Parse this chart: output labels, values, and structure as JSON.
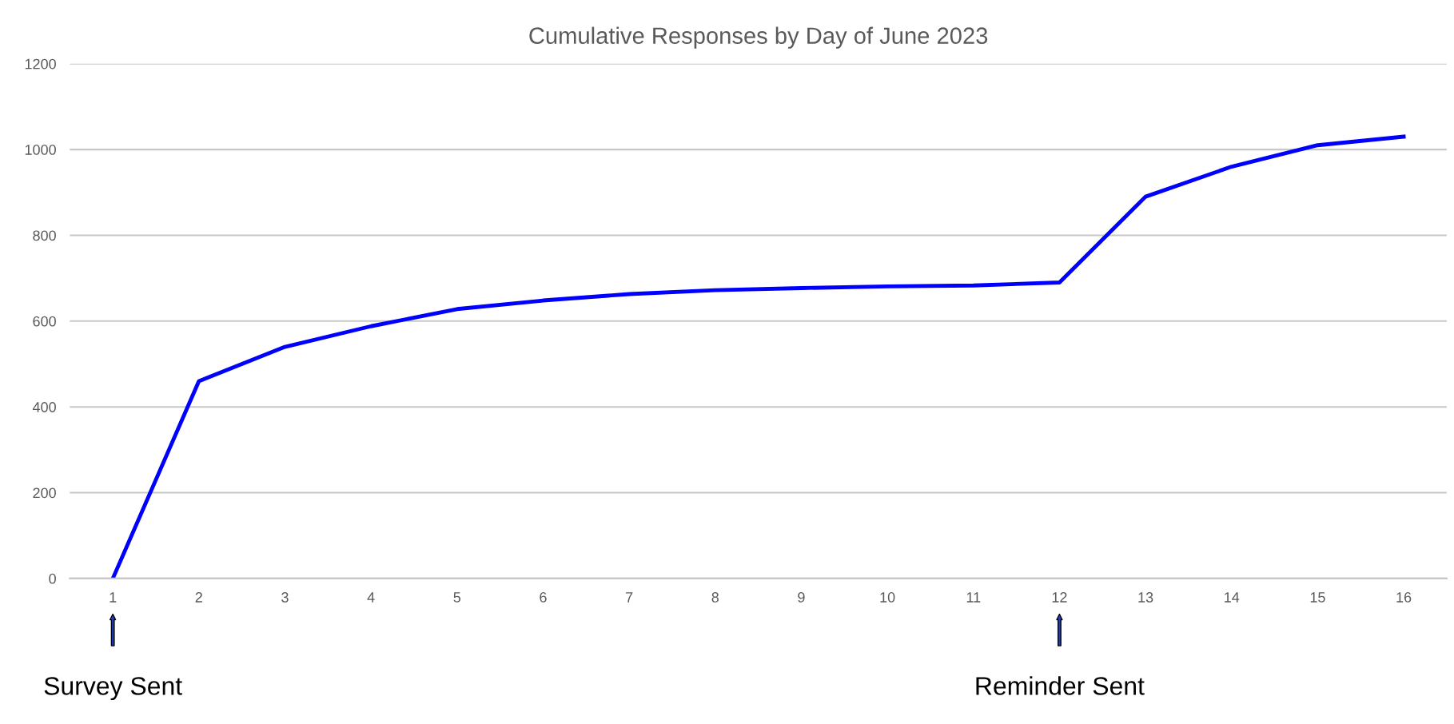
{
  "chart_data": {
    "type": "line",
    "title": "Cumulative Responses by Day of June 2023",
    "categories": [
      "1",
      "2",
      "3",
      "4",
      "5",
      "6",
      "7",
      "8",
      "9",
      "10",
      "11",
      "12",
      "13",
      "14",
      "15",
      "16"
    ],
    "series": [
      {
        "color": "#0000ff",
        "values": [
          0,
          460,
          540,
          588,
          628,
          648,
          663,
          672,
          677,
          681,
          683,
          690,
          890,
          960,
          1010,
          1030
        ]
      }
    ],
    "ylim": [
      0,
      1200
    ],
    "yticks": [
      0,
      200,
      400,
      600,
      800,
      1000,
      1200
    ],
    "grid": "y",
    "marker": "none",
    "line_style": "solid",
    "annotations": [
      "Survey Sent",
      "Reminder Sent"
    ]
  }
}
